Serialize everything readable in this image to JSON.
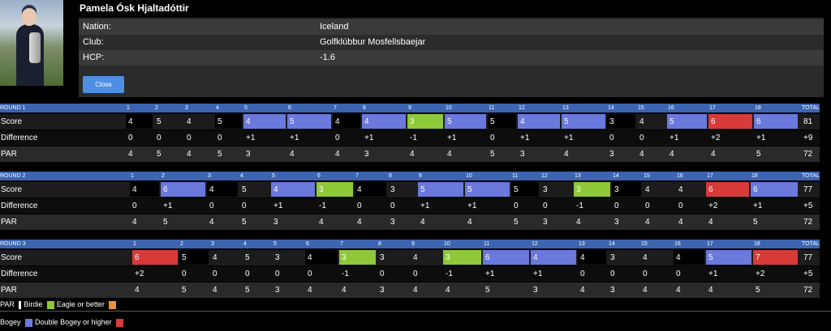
{
  "player": {
    "name": "Pamela Ósk Hjaltadóttir"
  },
  "info": [
    {
      "label": "Nation:",
      "value": "Iceland"
    },
    {
      "label": "Club:",
      "value": "Golfklúbbur Mosfellsbaejar"
    },
    {
      "label": "HCP:",
      "value": "-1.6"
    }
  ],
  "close_label": "Close",
  "colors": {
    "eagle": "#8fc93a",
    "birdie": "#000000",
    "bogey": "#6b78dc",
    "double": "#d83a3a",
    "header": "#3c64b0",
    "par_swatch": "#e8943a"
  },
  "rounds": [
    {
      "title": "ROUND 1",
      "holes": [
        "1",
        "2",
        "3",
        "4",
        "5",
        "6",
        "7",
        "8",
        "9",
        "10",
        "11",
        "12",
        "13",
        "14",
        "15",
        "16",
        "17",
        "18"
      ],
      "total_label": "TOTAL",
      "score_label": "Score",
      "diff_label": "Difference",
      "par_label": "PAR",
      "scores": [
        "4",
        "5",
        "4",
        "5",
        "4",
        "5",
        "4",
        "4",
        "3",
        "5",
        "5",
        "4",
        "5",
        "3",
        "4",
        "5",
        "6",
        "6"
      ],
      "score_types": [
        "birdie",
        "",
        "",
        "birdie",
        "bogey",
        "bogey",
        "birdie",
        "bogey",
        "eagle",
        "bogey",
        "birdie",
        "bogey",
        "bogey",
        "birdie",
        "",
        "bogey",
        "double",
        "bogey"
      ],
      "score_total": "81",
      "diffs": [
        "0",
        "0",
        "0",
        "0",
        "+1",
        "+1",
        "0",
        "+1",
        "-1",
        "+1",
        "0",
        "+1",
        "+1",
        "0",
        "0",
        "+1",
        "+2",
        "+1"
      ],
      "diff_total": "+9",
      "pars": [
        "4",
        "5",
        "4",
        "5",
        "3",
        "4",
        "4",
        "3",
        "4",
        "4",
        "5",
        "3",
        "4",
        "3",
        "4",
        "4",
        "4",
        "5"
      ],
      "par_total": "72"
    },
    {
      "title": "ROUND 2",
      "holes": [
        "1",
        "2",
        "3",
        "4",
        "5",
        "6",
        "7",
        "8",
        "9",
        "10",
        "11",
        "12",
        "13",
        "14",
        "15",
        "16",
        "17",
        "18"
      ],
      "total_label": "TOTAL",
      "score_label": "Score",
      "diff_label": "Difference",
      "par_label": "PAR",
      "scores": [
        "4",
        "6",
        "4",
        "5",
        "4",
        "3",
        "4",
        "3",
        "5",
        "5",
        "5",
        "3",
        "3",
        "3",
        "4",
        "4",
        "6",
        "6"
      ],
      "score_types": [
        "birdie",
        "bogey",
        "birdie",
        "",
        "bogey",
        "eagle",
        "birdie",
        "",
        "bogey",
        "bogey",
        "birdie",
        "",
        "eagle",
        "birdie",
        "",
        "",
        "double",
        "bogey"
      ],
      "score_total": "77",
      "diffs": [
        "0",
        "+1",
        "0",
        "0",
        "+1",
        "-1",
        "0",
        "0",
        "+1",
        "+1",
        "0",
        "0",
        "-1",
        "0",
        "0",
        "0",
        "+2",
        "+1"
      ],
      "diff_total": "+5",
      "pars": [
        "4",
        "5",
        "4",
        "5",
        "3",
        "4",
        "4",
        "3",
        "4",
        "4",
        "5",
        "3",
        "4",
        "3",
        "4",
        "4",
        "4",
        "5"
      ],
      "par_total": "72"
    },
    {
      "title": "ROUND 3",
      "holes": [
        "1",
        "2",
        "3",
        "4",
        "5",
        "6",
        "7",
        "8",
        "9",
        "10",
        "11",
        "12",
        "13",
        "14",
        "15",
        "16",
        "17",
        "18"
      ],
      "total_label": "TOTAL",
      "score_label": "Score",
      "diff_label": "Difference",
      "par_label": "PAR",
      "scores": [
        "6",
        "5",
        "4",
        "5",
        "3",
        "4",
        "3",
        "3",
        "4",
        "3",
        "6",
        "4",
        "4",
        "3",
        "4",
        "4",
        "5",
        "7"
      ],
      "score_types": [
        "double",
        "birdie",
        "",
        "",
        "",
        "birdie",
        "eagle",
        "",
        "",
        "eagle",
        "bogey",
        "bogey",
        "birdie",
        "",
        "",
        "birdie",
        "bogey",
        "double"
      ],
      "score_total": "77",
      "diffs": [
        "+2",
        "0",
        "0",
        "0",
        "0",
        "0",
        "-1",
        "0",
        "0",
        "-1",
        "+1",
        "+1",
        "0",
        "0",
        "0",
        "0",
        "+1",
        "+2"
      ],
      "diff_total": "+5",
      "pars": [
        "4",
        "5",
        "4",
        "5",
        "3",
        "4",
        "4",
        "3",
        "4",
        "4",
        "5",
        "3",
        "4",
        "3",
        "4",
        "4",
        "4",
        "5"
      ],
      "par_total": "72"
    }
  ],
  "legend": {
    "par": "PAR",
    "birdie": "Birdie",
    "eagle": "Eagle or better",
    "bogey": "Bogey",
    "double": "Double Bogey or higher"
  }
}
